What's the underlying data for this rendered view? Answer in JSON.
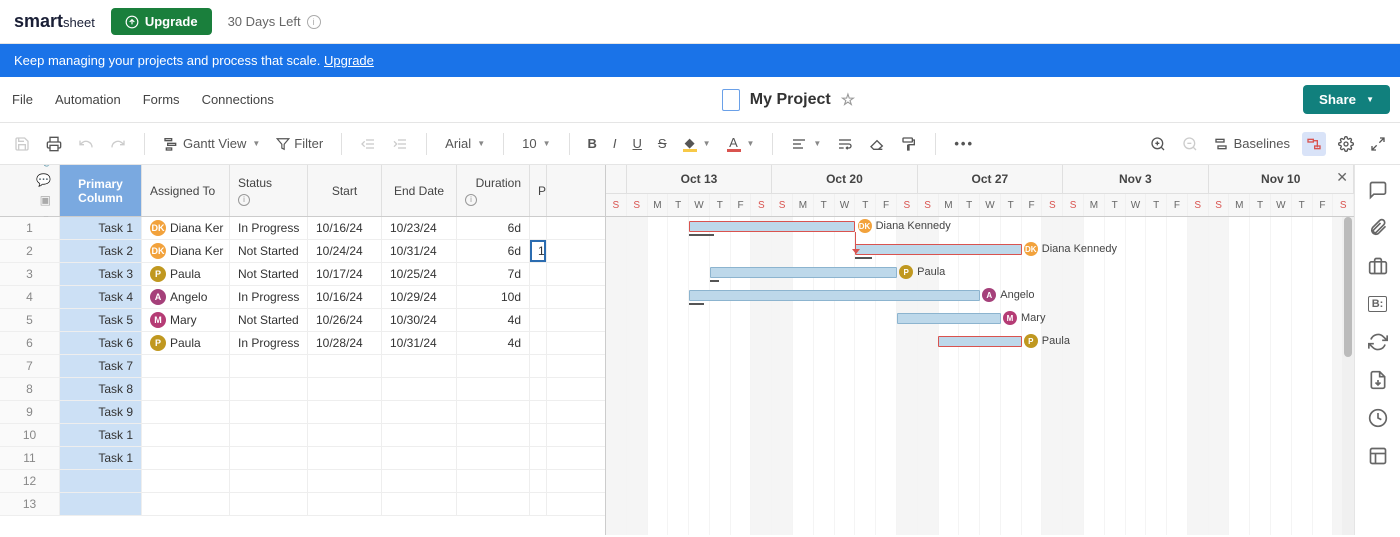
{
  "topbar": {
    "logo_a": "smart",
    "logo_b": "sheet",
    "upgrade_label": "Upgrade",
    "days_left": "30 Days Left"
  },
  "banner": {
    "text": "Keep managing your projects and process that scale. ",
    "link": "Upgrade"
  },
  "menus": [
    "File",
    "Automation",
    "Forms",
    "Connections"
  ],
  "sheet": {
    "title": "My Project"
  },
  "share_label": "Share",
  "toolbar": {
    "view": "Gantt View",
    "filter": "Filter",
    "font": "Arial",
    "size": "10",
    "baselines": "Baselines"
  },
  "columns": {
    "primary": "Primary Column",
    "assigned": "Assigned To",
    "status": "Status",
    "start": "Start",
    "end": "End Date",
    "dur": "Duration",
    "p": "P"
  },
  "assignees": {
    "diana": {
      "name": "Diana Kennedy",
      "short": "Diana Ker",
      "initials": "DK",
      "color": "#f2a23c"
    },
    "paula": {
      "name": "Paula",
      "short": "Paula",
      "initials": "P",
      "color": "#c09820"
    },
    "angelo": {
      "name": "Angelo",
      "short": "Angelo",
      "initials": "A",
      "color": "#a5407a"
    },
    "mary": {
      "name": "Mary",
      "short": "Mary",
      "initials": "M",
      "color": "#b53c75"
    }
  },
  "rows": [
    {
      "n": 1,
      "task": "Task 1",
      "assignee": "diana",
      "status": "In Progress",
      "start": "10/16/24",
      "end": "10/23/24",
      "dur": "6d",
      "p": ""
    },
    {
      "n": 2,
      "task": "Task 2",
      "assignee": "diana",
      "status": "Not Started",
      "start": "10/24/24",
      "end": "10/31/24",
      "dur": "6d",
      "p": "1"
    },
    {
      "n": 3,
      "task": "Task 3",
      "assignee": "paula",
      "status": "Not Started",
      "start": "10/17/24",
      "end": "10/25/24",
      "dur": "7d",
      "p": ""
    },
    {
      "n": 4,
      "task": "Task 4",
      "assignee": "angelo",
      "status": "In Progress",
      "start": "10/16/24",
      "end": "10/29/24",
      "dur": "10d",
      "p": ""
    },
    {
      "n": 5,
      "task": "Task 5",
      "assignee": "mary",
      "status": "Not Started",
      "start": "10/26/24",
      "end": "10/30/24",
      "dur": "4d",
      "p": ""
    },
    {
      "n": 6,
      "task": "Task 6",
      "assignee": "paula",
      "status": "In Progress",
      "start": "10/28/24",
      "end": "10/31/24",
      "dur": "4d",
      "p": ""
    },
    {
      "n": 7,
      "task": "Task 7"
    },
    {
      "n": 8,
      "task": "Task 8"
    },
    {
      "n": 9,
      "task": "Task 9"
    },
    {
      "n": 10,
      "task": "Task 1"
    },
    {
      "n": 11,
      "task": "Task 1"
    },
    {
      "n": 12,
      "task": ""
    },
    {
      "n": 13,
      "task": ""
    }
  ],
  "gantt": {
    "start_date": "2024-10-12",
    "days": 36,
    "weeks": [
      "Oct 13",
      "Oct 20",
      "Oct 27",
      "Nov 3",
      "Nov 10"
    ],
    "day_labels": [
      "S",
      "M",
      "T",
      "W",
      "T",
      "F",
      "S"
    ],
    "weekend_color": "#d9534f",
    "bar_fill": "#bdd8ea",
    "bar_border": "#8cb4cf",
    "critical_border": "#d9534f",
    "bars": [
      {
        "row": 0,
        "start": 4,
        "len": 8,
        "red": true,
        "progress": 0.15,
        "assignee": "diana"
      },
      {
        "row": 1,
        "start": 12,
        "len": 8,
        "red": true,
        "progress": 0.1,
        "assignee": "diana"
      },
      {
        "row": 2,
        "start": 5,
        "len": 9,
        "red": false,
        "progress": 0.05,
        "assignee": "paula"
      },
      {
        "row": 3,
        "start": 4,
        "len": 14,
        "red": false,
        "progress": 0.05,
        "assignee": "angelo"
      },
      {
        "row": 4,
        "start": 14,
        "len": 5,
        "red": false,
        "progress": 0,
        "assignee": "mary"
      },
      {
        "row": 5,
        "start": 16,
        "len": 4,
        "red": true,
        "progress": 0,
        "assignee": "paula"
      }
    ],
    "dependency": {
      "from_row": 0,
      "to_row": 1,
      "at_day": 12
    }
  },
  "colors": {
    "banner": "#1a73e8",
    "upgrade": "#1a7f3c",
    "share": "#11807d",
    "primary_col": "#7aa9e0",
    "primary_cell": "#cce0f5"
  }
}
